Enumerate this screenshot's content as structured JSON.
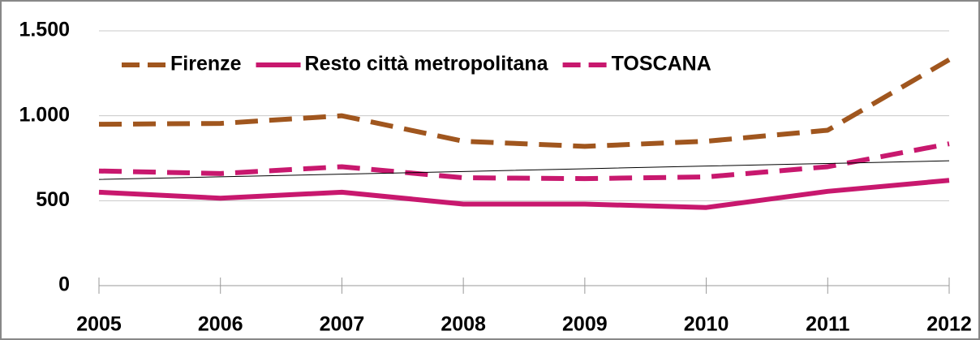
{
  "chart_data": {
    "type": "line",
    "categories": [
      "2005",
      "2006",
      "2007",
      "2008",
      "2009",
      "2010",
      "2011",
      "2012"
    ],
    "series": [
      {
        "name": "Firenze",
        "color": "#a0561e",
        "dash": true,
        "values": [
          950,
          955,
          1000,
          850,
          820,
          850,
          915,
          1330
        ]
      },
      {
        "name": "Resto città metropolitana",
        "color": "#c8186e",
        "dash": false,
        "values": [
          550,
          515,
          550,
          480,
          480,
          460,
          555,
          620
        ]
      },
      {
        "name": "TOSCANA",
        "color": "#c8186e",
        "dash": true,
        "values": [
          675,
          660,
          700,
          635,
          630,
          640,
          700,
          835
        ]
      },
      {
        "color": "#000000",
        "dash": false,
        "thin": true,
        "values": [
          625,
          641,
          656,
          672,
          688,
          704,
          719,
          735
        ]
      }
    ],
    "ylim": [
      0,
      1500
    ],
    "yticks": [
      0,
      {
        "value": 500,
        "label": "500"
      },
      {
        "value": 1000,
        "label": "1.000"
      },
      {
        "value": 1500,
        "label": "1.500"
      }
    ],
    "grid": true,
    "legend": "top-left"
  }
}
